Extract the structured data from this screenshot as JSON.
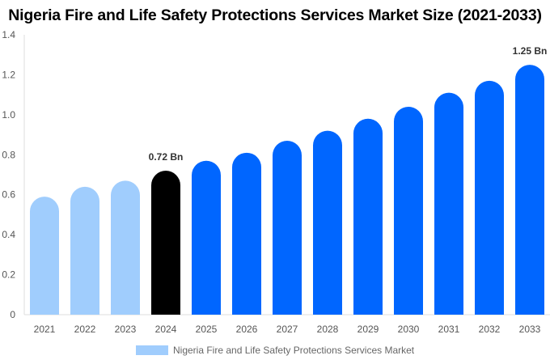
{
  "chart_data": {
    "type": "bar",
    "title": "Nigeria Fire and Life Safety Protections Services Market Size (2021-2033)",
    "categories": [
      "2021",
      "2022",
      "2023",
      "2024",
      "2025",
      "2026",
      "2027",
      "2028",
      "2029",
      "2030",
      "2031",
      "2032",
      "2033"
    ],
    "series": [
      {
        "name": "Nigeria Fire and Life Safety Protections Services Market",
        "values": [
          0.59,
          0.64,
          0.67,
          0.72,
          0.77,
          0.81,
          0.87,
          0.92,
          0.98,
          1.04,
          1.11,
          1.17,
          1.25
        ]
      }
    ],
    "bar_colors": [
      "#a0cdfd",
      "#a0cdfd",
      "#a0cdfd",
      "#000000",
      "#0066ff",
      "#0066ff",
      "#0066ff",
      "#0066ff",
      "#0066ff",
      "#0066ff",
      "#0066ff",
      "#0066ff",
      "#0066ff"
    ],
    "data_labels": [
      {
        "category": "2024",
        "text": "0.72 Bn"
      },
      {
        "category": "2033",
        "text": "1.25 Bn"
      }
    ],
    "yticks": [
      "0",
      "0.2",
      "0.4",
      "0.6",
      "0.8",
      "1.0",
      "1.2",
      "1.4"
    ],
    "ylim": [
      0,
      1.4
    ],
    "xlabel": "",
    "ylabel": "",
    "grid": false,
    "legend": "bottom"
  }
}
